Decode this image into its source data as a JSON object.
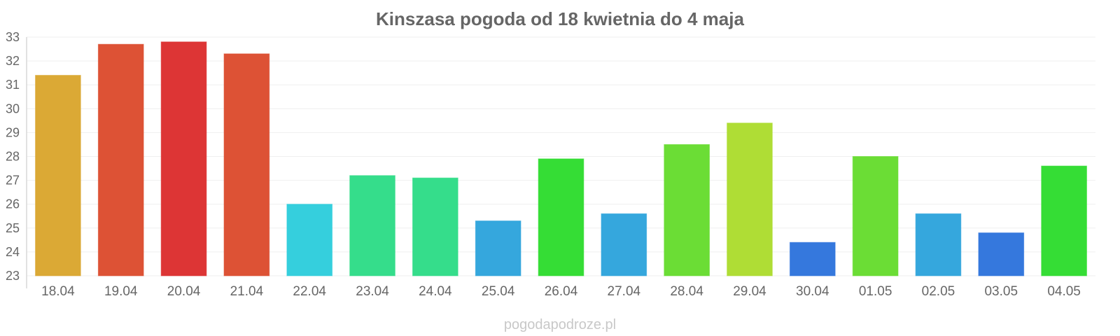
{
  "chart_data": {
    "type": "bar",
    "title": "Kinszasa pogoda od 18 kwietnia do 4 maja",
    "xlabel": "",
    "ylabel": "",
    "ylim": [
      23,
      33
    ],
    "yticks": [
      23,
      24,
      25,
      26,
      27,
      28,
      29,
      30,
      31,
      32,
      33
    ],
    "grid": true,
    "categories": [
      "18.04",
      "19.04",
      "20.04",
      "21.04",
      "22.04",
      "23.04",
      "24.04",
      "25.04",
      "26.04",
      "27.04",
      "28.04",
      "29.04",
      "30.04",
      "01.05",
      "02.05",
      "03.05",
      "04.05"
    ],
    "values": [
      31.4,
      32.7,
      32.8,
      32.3,
      26.0,
      27.2,
      27.1,
      25.3,
      27.9,
      25.6,
      28.5,
      29.4,
      24.4,
      28.0,
      25.6,
      24.8,
      27.6
    ],
    "colors": [
      "#dba935",
      "#dd5235",
      "#dd3535",
      "#dd5235",
      "#35cfdd",
      "#35dd8b",
      "#35dd8b",
      "#35a7dd",
      "#35dd35",
      "#35a7dd",
      "#6bdd35",
      "#afdd35",
      "#3578dd",
      "#6bdd35",
      "#35a7dd",
      "#3578dd",
      "#35dd35"
    ]
  },
  "watermark": "pogodapodroze.pl"
}
